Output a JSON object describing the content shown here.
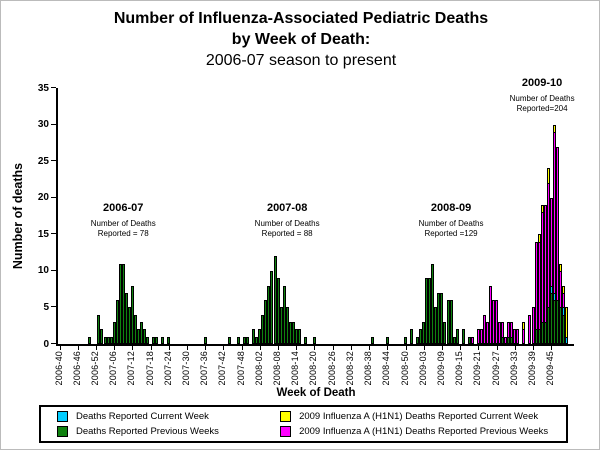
{
  "title": {
    "line1": "Number of Influenza-Associated Pediatric Deaths",
    "line2": "by Week of Death:",
    "line3": "2006-07 season to present"
  },
  "chart_data": {
    "type": "bar",
    "subtype": "stacked-weekly-epidemic-curve",
    "xlabel": "Week of Death",
    "ylabel": "Number of deaths",
    "ylim": [
      0,
      35
    ],
    "ytick_step": 5,
    "grid": false,
    "x_axis": {
      "first_week": "2006-40",
      "last_week": "2009-52",
      "weeks_in_year": {
        "2006": 52,
        "2007": 52,
        "2008": 53,
        "2009": 52
      },
      "tick_every": 6,
      "last_labeled_tick": "2009-45"
    },
    "series": [
      {
        "key": "c",
        "name": "Deaths Reported Current Week",
        "color": "#00ccff"
      },
      {
        "key": "g",
        "name": "Deaths Reported Previous Weeks",
        "color": "#0f820f"
      },
      {
        "key": "y",
        "name": "2009 Influenza A (H1N1) Deaths Reported Current Week",
        "color": "#ffff00"
      },
      {
        "key": "m",
        "name": "2009 Influenza A (H1N1) Deaths Reported Previous Weeks",
        "color": "#ff00ff"
      }
    ],
    "stack_order": [
      "g",
      "c",
      "m",
      "y"
    ],
    "season_totals": {
      "2006-07": 78,
      "2007-08": 88,
      "2008-09": 129,
      "2009-10": 204
    },
    "annotations": [
      {
        "season": "2006-07",
        "line1": "Number of Deaths",
        "line2": "Reported = 78",
        "anchor_week": "2007-09"
      },
      {
        "season": "2007-08",
        "line1": "Number of Deaths",
        "line2": "Reported = 88",
        "anchor_week": "2008-11"
      },
      {
        "season": "2008-09",
        "line1": "Number of Deaths",
        "line2": "Reported =129",
        "anchor_week": "2009-12"
      },
      {
        "season": "2009-10",
        "line1": "Number of Deaths",
        "line2": "Reported=204",
        "anchor_week": "2009-42"
      }
    ],
    "bars": [
      {
        "w": "2006-50",
        "g": 1
      },
      {
        "w": "2007-01",
        "g": 4
      },
      {
        "w": "2007-02",
        "g": 2
      },
      {
        "w": "2007-03",
        "g": 1
      },
      {
        "w": "2007-04",
        "g": 1
      },
      {
        "w": "2007-05",
        "g": 1
      },
      {
        "w": "2007-06",
        "g": 3
      },
      {
        "w": "2007-07",
        "g": 6
      },
      {
        "w": "2007-08",
        "g": 11
      },
      {
        "w": "2007-09",
        "g": 11
      },
      {
        "w": "2007-10",
        "g": 7
      },
      {
        "w": "2007-11",
        "g": 5
      },
      {
        "w": "2007-12",
        "g": 8
      },
      {
        "w": "2007-13",
        "g": 4
      },
      {
        "w": "2007-14",
        "g": 2
      },
      {
        "w": "2007-15",
        "g": 3
      },
      {
        "w": "2007-16",
        "g": 2
      },
      {
        "w": "2007-17",
        "g": 1
      },
      {
        "w": "2007-19",
        "g": 1
      },
      {
        "w": "2007-20",
        "g": 1
      },
      {
        "w": "2007-22",
        "g": 1
      },
      {
        "w": "2007-24",
        "g": 1
      },
      {
        "w": "2007-36",
        "g": 1
      },
      {
        "w": "2007-44",
        "g": 1
      },
      {
        "w": "2007-47",
        "g": 1
      },
      {
        "w": "2007-49",
        "g": 1
      },
      {
        "w": "2007-50",
        "g": 1
      },
      {
        "w": "2007-52",
        "g": 2
      },
      {
        "w": "2008-01",
        "g": 1
      },
      {
        "w": "2008-02",
        "g": 2
      },
      {
        "w": "2008-03",
        "g": 4
      },
      {
        "w": "2008-04",
        "g": 6
      },
      {
        "w": "2008-05",
        "g": 8
      },
      {
        "w": "2008-06",
        "g": 10
      },
      {
        "w": "2008-07",
        "g": 12
      },
      {
        "w": "2008-08",
        "g": 9
      },
      {
        "w": "2008-09",
        "g": 5
      },
      {
        "w": "2008-10",
        "g": 8
      },
      {
        "w": "2008-11",
        "g": 5
      },
      {
        "w": "2008-12",
        "g": 3
      },
      {
        "w": "2008-13",
        "g": 3
      },
      {
        "w": "2008-14",
        "g": 2
      },
      {
        "w": "2008-15",
        "g": 2
      },
      {
        "w": "2008-17",
        "g": 1
      },
      {
        "w": "2008-20",
        "g": 1
      },
      {
        "w": "2008-39",
        "g": 1
      },
      {
        "w": "2008-44",
        "g": 1
      },
      {
        "w": "2008-50",
        "g": 1
      },
      {
        "w": "2008-52",
        "g": 2
      },
      {
        "w": "2009-01",
        "g": 1
      },
      {
        "w": "2009-02",
        "g": 2
      },
      {
        "w": "2009-03",
        "g": 3
      },
      {
        "w": "2009-04",
        "g": 9
      },
      {
        "w": "2009-05",
        "g": 9
      },
      {
        "w": "2009-06",
        "g": 11
      },
      {
        "w": "2009-07",
        "g": 5
      },
      {
        "w": "2009-08",
        "g": 7
      },
      {
        "w": "2009-09",
        "g": 7
      },
      {
        "w": "2009-10",
        "g": 3
      },
      {
        "w": "2009-11",
        "g": 6
      },
      {
        "w": "2009-12",
        "g": 6
      },
      {
        "w": "2009-13",
        "g": 1
      },
      {
        "w": "2009-14",
        "g": 2
      },
      {
        "w": "2009-16",
        "g": 2
      },
      {
        "w": "2009-18",
        "g": 1
      },
      {
        "w": "2009-19",
        "m": 1
      },
      {
        "w": "2009-21",
        "m": 2
      },
      {
        "w": "2009-22",
        "m": 2
      },
      {
        "w": "2009-23",
        "m": 4
      },
      {
        "w": "2009-24",
        "m": 3
      },
      {
        "w": "2009-25",
        "m": 8
      },
      {
        "w": "2009-26",
        "m": 6
      },
      {
        "w": "2009-27",
        "m": 6
      },
      {
        "w": "2009-28",
        "m": 3
      },
      {
        "w": "2009-29",
        "g": 1,
        "m": 2
      },
      {
        "w": "2009-30",
        "m": 1
      },
      {
        "w": "2009-31",
        "g": 1,
        "m": 2
      },
      {
        "w": "2009-32",
        "g": 1,
        "m": 2
      },
      {
        "w": "2009-33",
        "m": 2
      },
      {
        "w": "2009-34",
        "m": 2
      },
      {
        "w": "2009-36",
        "m": 2,
        "y": 1
      },
      {
        "w": "2009-38",
        "m": 4
      },
      {
        "w": "2009-39",
        "m": 5
      },
      {
        "w": "2009-40",
        "g": 2,
        "m": 12
      },
      {
        "w": "2009-41",
        "g": 2,
        "m": 12,
        "y": 1
      },
      {
        "w": "2009-42",
        "g": 3,
        "m": 15,
        "y": 1
      },
      {
        "w": "2009-43",
        "g": 3,
        "m": 16
      },
      {
        "w": "2009-44",
        "g": 5,
        "m": 17,
        "y": 2
      },
      {
        "w": "2009-45",
        "g": 7,
        "c": 1,
        "m": 12
      },
      {
        "w": "2009-46",
        "g": 6,
        "c": 1,
        "m": 22,
        "y": 1
      },
      {
        "w": "2009-47",
        "g": 6,
        "m": 21
      },
      {
        "w": "2009-48",
        "g": 5,
        "m": 5,
        "y": 1
      },
      {
        "w": "2009-49",
        "g": 4,
        "c": 1,
        "m": 2,
        "y": 1
      },
      {
        "w": "2009-50",
        "c": 1,
        "y": 4
      }
    ]
  },
  "legend": {
    "items": [
      {
        "key": "c",
        "color": "#00ccff",
        "label": "Deaths Reported Current Week"
      },
      {
        "key": "g",
        "color": "#0f820f",
        "label": "Deaths Reported Previous Weeks"
      },
      {
        "key": "y",
        "color": "#ffff00",
        "label": "2009 Influenza A (H1N1) Deaths Reported Current Week"
      },
      {
        "key": "m",
        "color": "#ff00ff",
        "label": "2009 Influenza A (H1N1) Deaths Reported Previous Weeks"
      }
    ]
  }
}
